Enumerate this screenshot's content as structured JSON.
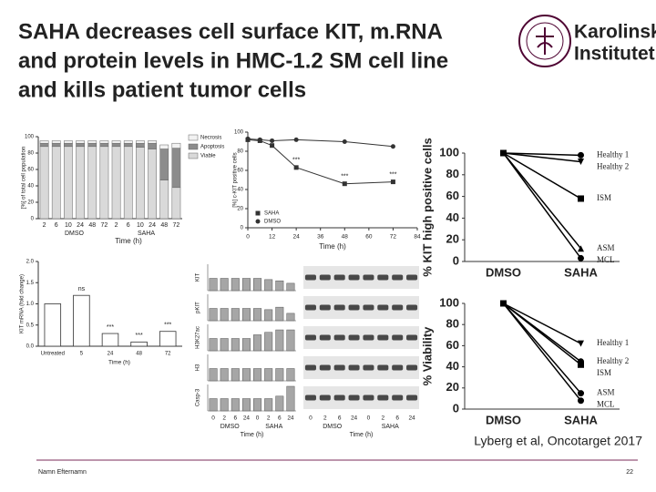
{
  "header": {
    "title_lines": [
      "SAHA decreases cell surface KIT, m.RNA",
      "and protein levels in HMC-1.2 SM cell line",
      "and kills patient tumor cells"
    ],
    "logo": [
      "Karolinska",
      "Institutet"
    ]
  },
  "chart_data": [
    {
      "type": "bar",
      "stacked": true,
      "ylabel": "[%] of total cell population",
      "xlabel": "Time (h)",
      "categories": [
        "2",
        "6",
        "10",
        "24",
        "48",
        "72",
        "2",
        "6",
        "10",
        "24",
        "48",
        "72"
      ],
      "group_labels": [
        "DMSO",
        "SAHA"
      ],
      "series": [
        {
          "name": "Viable",
          "color": "#d9d9d9",
          "values": [
            88,
            88,
            88,
            88,
            88,
            88,
            88,
            88,
            87,
            85,
            47,
            38
          ]
        },
        {
          "name": "Apoptosis",
          "color": "#8c8c8c",
          "values": [
            4,
            4,
            4,
            4,
            4,
            4,
            4,
            4,
            5,
            7,
            38,
            48
          ]
        },
        {
          "name": "Necrosis",
          "color": "#f2f2f2",
          "values": [
            3,
            3,
            3,
            3,
            3,
            3,
            3,
            3,
            3,
            3,
            5,
            6
          ]
        }
      ],
      "ylim": [
        0,
        100
      ],
      "yticks": [
        0,
        20,
        40,
        60,
        80,
        100
      ]
    },
    {
      "type": "line",
      "ylabel": "[%] c-KIT positive cells",
      "xlabel": "Time (h)",
      "x": [
        0,
        6,
        12,
        24,
        48,
        72
      ],
      "series": [
        {
          "name": "SAHA",
          "color": "#333333",
          "marker": "square",
          "values": [
            92,
            91,
            86,
            63,
            46,
            48
          ]
        },
        {
          "name": "DMSO",
          "color": "#333333",
          "marker": "circle",
          "values": [
            93,
            92,
            91,
            92,
            90,
            85
          ]
        }
      ],
      "annotations": [
        "***",
        "***",
        "***"
      ],
      "xlim": [
        0,
        84
      ],
      "xticks": [
        0,
        12,
        24,
        36,
        48,
        60,
        72,
        84
      ],
      "ylim": [
        0,
        100
      ],
      "yticks": [
        0,
        20,
        40,
        60,
        80,
        100
      ]
    },
    {
      "type": "bar",
      "ylabel": "KIT mRNA (fold change)",
      "xlabel": "Time (h)",
      "categories": [
        "Untreated",
        "5",
        "24",
        "48",
        "72"
      ],
      "values": [
        1.0,
        1.2,
        0.3,
        0.1,
        0.35
      ],
      "annotations": [
        null,
        "ns",
        "***",
        "***",
        "***"
      ],
      "color": "#ffffff",
      "ylim": [
        0,
        2
      ],
      "yticks": [
        {
          "value": 0,
          "label": "0.0"
        },
        {
          "value": 0.5,
          "label": "0.5"
        },
        {
          "value": 1,
          "label": "1.0"
        },
        {
          "value": 1.5,
          "label": "1.5"
        },
        {
          "value": 2,
          "label": "2.0"
        }
      ]
    },
    {
      "type": "blot",
      "xlabel": "Time (h)",
      "categories": [
        "0",
        "2",
        "6",
        "24",
        "0",
        "2",
        "6",
        "24"
      ],
      "group_labels": [
        "DMSO",
        "SAHA"
      ],
      "color": "#a6a6a6",
      "ylim": [
        0,
        2
      ],
      "rows": [
        {
          "label": "KIT",
          "values": [
            1,
            1,
            1,
            1,
            1,
            0.9,
            0.8,
            0.6
          ]
        },
        {
          "label": "pKIT",
          "values": [
            1,
            1,
            1,
            1,
            1,
            0.9,
            1.1,
            0.6
          ]
        },
        {
          "label": "H3K27ac",
          "values": [
            1,
            1,
            1,
            1,
            1.3,
            1.5,
            1.7,
            1.7
          ]
        },
        {
          "label": "H3",
          "values": [
            1,
            1,
            1,
            1,
            1,
            1,
            1,
            1
          ]
        },
        {
          "label": "Casp-3",
          "values": [
            1,
            1,
            1,
            1,
            1,
            1,
            1.2,
            2
          ]
        }
      ]
    },
    {
      "type": "line",
      "ylabel": "% KIT high positive cells",
      "categories": [
        "DMSO",
        "SAHA"
      ],
      "series": [
        {
          "name": "Healthy 1",
          "color": "#000000",
          "marker": "circle",
          "values": [
            100,
            98
          ]
        },
        {
          "name": "Healthy 2",
          "color": "#000000",
          "marker": "tri-down",
          "values": [
            100,
            92
          ]
        },
        {
          "name": "ISM",
          "color": "#000000",
          "marker": "square",
          "values": [
            100,
            58
          ]
        },
        {
          "name": "ASM",
          "color": "#000000",
          "marker": "tri-up",
          "values": [
            100,
            12
          ]
        },
        {
          "name": "MCL",
          "color": "#000000",
          "marker": "circle",
          "values": [
            100,
            3
          ]
        }
      ],
      "ylim": [
        0,
        100
      ],
      "yticks": [
        0,
        20,
        40,
        60,
        80,
        100
      ]
    },
    {
      "type": "line",
      "ylabel": "% Viability",
      "categories": [
        "DMSO",
        "SAHA"
      ],
      "series": [
        {
          "name": "Healthy 1",
          "color": "#000000",
          "marker": "tri-down",
          "values": [
            100,
            62
          ]
        },
        {
          "name": "Healthy 2",
          "color": "#000000",
          "marker": "circle",
          "values": [
            100,
            45
          ]
        },
        {
          "name": "ISM",
          "color": "#000000",
          "marker": "square",
          "values": [
            100,
            42
          ]
        },
        {
          "name": "ASM",
          "color": "#000000",
          "marker": "circle",
          "values": [
            100,
            15
          ]
        },
        {
          "name": "MCL",
          "color": "#000000",
          "marker": "circle",
          "values": [
            100,
            8
          ]
        }
      ],
      "ylim": [
        0,
        100
      ],
      "yticks": [
        0,
        20,
        40,
        60,
        80,
        100
      ]
    }
  ],
  "citation": "Lyberg et al, Oncotarget 2017",
  "footer": {
    "author": "Namn Efternamn",
    "page": "22"
  }
}
